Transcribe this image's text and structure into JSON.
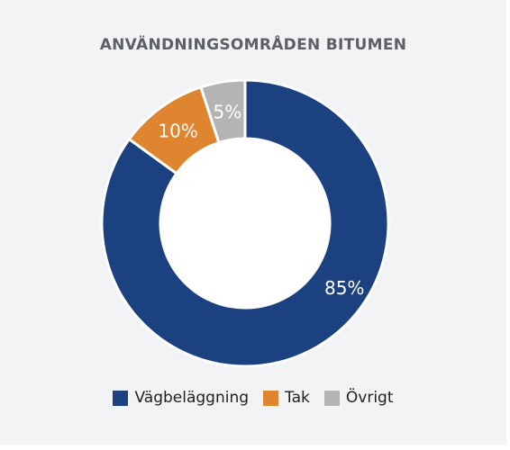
{
  "chart_data": {
    "type": "pie",
    "style": "donut",
    "title": "ANVÄNDNINGSOMRÅDEN BITUMEN",
    "categories": [
      "Vägbeläggning",
      "Tak",
      "Övrigt"
    ],
    "values": [
      85,
      10,
      5
    ],
    "data_labels": [
      "85%",
      "10%",
      "5%"
    ],
    "colors": [
      "#1c4180",
      "#df8530",
      "#b4b4b4"
    ],
    "legend_position": "bottom",
    "start": "12 o'clock, clockwise"
  }
}
